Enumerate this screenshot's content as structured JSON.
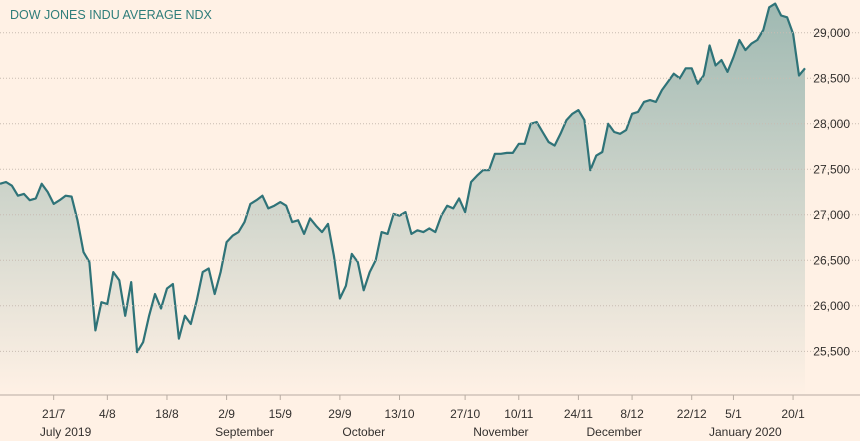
{
  "chart_data": {
    "type": "area",
    "title": "DOW JONES INDU AVERAGE NDX",
    "color": "#2f7378",
    "ylim": [
      25020,
      29360
    ],
    "yticks": [
      {
        "value": 25500,
        "label": "25,500"
      },
      {
        "value": 26000,
        "label": "26,000"
      },
      {
        "value": 26500,
        "label": "26,500"
      },
      {
        "value": 27000,
        "label": "27,000"
      },
      {
        "value": 27500,
        "label": "27,500"
      },
      {
        "value": 28000,
        "label": "28,000"
      },
      {
        "value": 28500,
        "label": "28,500"
      },
      {
        "value": 29000,
        "label": "29,000"
      }
    ],
    "grid": true,
    "categories": [
      null,
      null,
      null,
      null,
      null,
      null,
      null,
      null,
      null,
      "21/7",
      null,
      null,
      null,
      null,
      null,
      null,
      null,
      null,
      "4/8",
      null,
      null,
      null,
      null,
      null,
      null,
      null,
      null,
      null,
      "18/8",
      null,
      null,
      null,
      null,
      null,
      null,
      null,
      null,
      null,
      "2/9",
      null,
      null,
      null,
      null,
      null,
      null,
      null,
      null,
      "15/9",
      null,
      null,
      null,
      null,
      null,
      null,
      null,
      null,
      null,
      "29/9",
      null,
      null,
      null,
      null,
      null,
      null,
      null,
      null,
      null,
      "13/10",
      null,
      null,
      null,
      null,
      null,
      null,
      null,
      null,
      null,
      null,
      "27/10",
      null,
      null,
      null,
      null,
      null,
      null,
      null,
      null,
      "10/11",
      null,
      null,
      null,
      null,
      null,
      null,
      null,
      null,
      null,
      "24/11",
      null,
      null,
      null,
      null,
      null,
      null,
      null,
      null,
      "8/12",
      null,
      null,
      null,
      null,
      null,
      null,
      null,
      null,
      null,
      "22/12",
      null,
      null,
      null,
      null,
      null,
      null,
      "5/1",
      null,
      null,
      null,
      null,
      null,
      null,
      null,
      null,
      null,
      "20/1",
      null,
      null
    ],
    "months": [
      null,
      null,
      null,
      null,
      null,
      null,
      null,
      null,
      null,
      null,
      null,
      "July 2019",
      null,
      null,
      null,
      null,
      null,
      null,
      null,
      null,
      null,
      null,
      null,
      null,
      null,
      null,
      null,
      null,
      null,
      null,
      null,
      null,
      null,
      null,
      null,
      null,
      null,
      null,
      null,
      null,
      null,
      "September",
      null,
      null,
      null,
      null,
      null,
      null,
      null,
      null,
      null,
      null,
      null,
      null,
      null,
      null,
      null,
      null,
      null,
      null,
      null,
      "October",
      null,
      null,
      null,
      null,
      null,
      null,
      null,
      null,
      null,
      null,
      null,
      null,
      null,
      null,
      null,
      null,
      null,
      null,
      null,
      null,
      null,
      null,
      "November",
      null,
      null,
      null,
      null,
      null,
      null,
      null,
      null,
      null,
      null,
      null,
      null,
      null,
      null,
      null,
      null,
      null,
      null,
      "December",
      null,
      null,
      null,
      null,
      null,
      null,
      null,
      null,
      null,
      null,
      null,
      null,
      null,
      null,
      null,
      null,
      null,
      null,
      null,
      null,
      null,
      "January 2020",
      null,
      null,
      null,
      null,
      null,
      null,
      null,
      null,
      null,
      null
    ],
    "values": [
      27340,
      27360,
      27320,
      27210,
      27230,
      27160,
      27180,
      27340,
      27250,
      27120,
      27160,
      27210,
      27200,
      26940,
      26590,
      26480,
      25730,
      26040,
      26020,
      26370,
      26280,
      25890,
      26260,
      25490,
      25600,
      25890,
      26130,
      25970,
      26190,
      26240,
      25640,
      25890,
      25800,
      26060,
      26370,
      26410,
      26130,
      26370,
      26700,
      26770,
      26810,
      26920,
      27120,
      27160,
      27210,
      27070,
      27100,
      27140,
      27100,
      26920,
      26940,
      26790,
      26960,
      26880,
      26810,
      26900,
      26550,
      26080,
      26220,
      26570,
      26480,
      26170,
      26370,
      26500,
      26810,
      26790,
      27010,
      26990,
      27030,
      26790,
      26830,
      26810,
      26850,
      26810,
      26990,
      27100,
      27070,
      27180,
      27030,
      27360,
      27430,
      27490,
      27490,
      27670,
      27670,
      27680,
      27680,
      27780,
      27780,
      28000,
      28020,
      27910,
      27800,
      27760,
      27890,
      28040,
      28110,
      28150,
      28040,
      27490,
      27650,
      27690,
      28000,
      27910,
      27890,
      27930,
      28110,
      28130,
      28240,
      28260,
      28240,
      28370,
      28460,
      28550,
      28500,
      28610,
      28610,
      28440,
      28530,
      28860,
      28640,
      28700,
      28570,
      28730,
      28920,
      28810,
      28880,
      28920,
      29030,
      29280,
      29320,
      29190,
      29170,
      28990,
      28530,
      28610
    ]
  }
}
